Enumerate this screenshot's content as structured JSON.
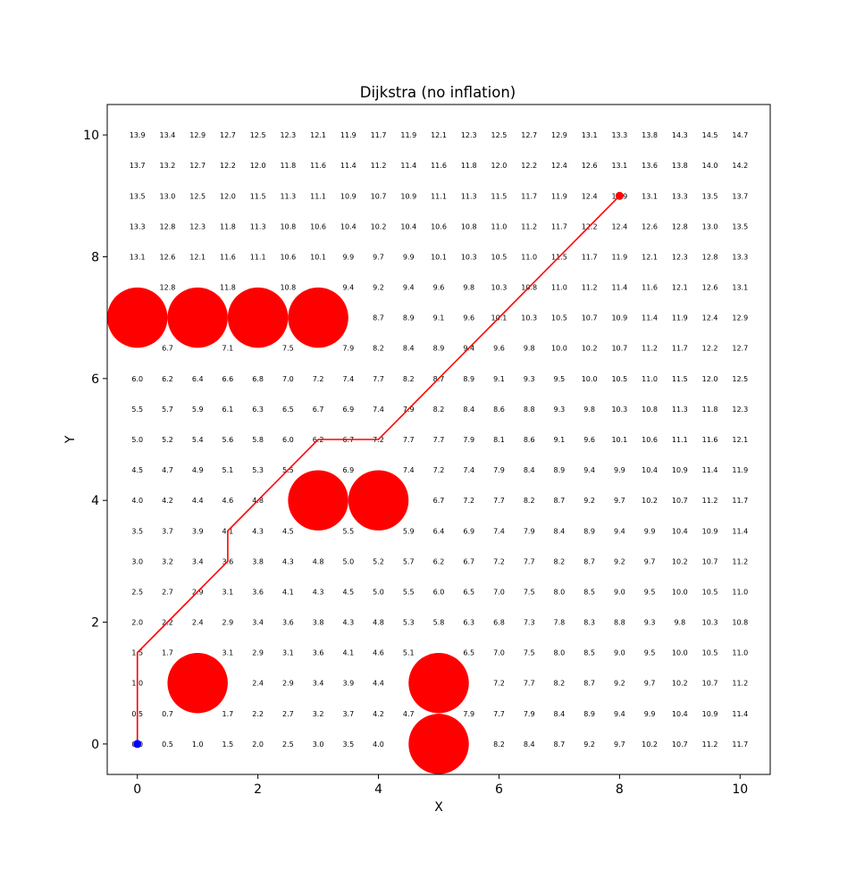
{
  "chart_data": {
    "type": "scatter",
    "title": "Dijkstra (no inflation)",
    "xlabel": "X",
    "ylabel": "Y",
    "xlim": [
      -0.5,
      10.5
    ],
    "ylim": [
      -0.5,
      10.5
    ],
    "xticks": [
      0,
      2,
      4,
      6,
      8,
      10
    ],
    "yticks": [
      0,
      2,
      4,
      6,
      8,
      10
    ],
    "grid": false,
    "grid_step": 0.5,
    "colors": {
      "obstacle": "#ff0000",
      "path": "#ff0000",
      "goal": "#ff0000",
      "start": "#0000ff",
      "text": "#000000"
    },
    "obstacles": {
      "radius": 0.5,
      "centers": [
        [
          0,
          7
        ],
        [
          1,
          7
        ],
        [
          2,
          7
        ],
        [
          3,
          7
        ],
        [
          3,
          4
        ],
        [
          4,
          4
        ],
        [
          1,
          1
        ],
        [
          5,
          1
        ],
        [
          5,
          0
        ]
      ]
    },
    "start": [
      0,
      0
    ],
    "goal": [
      8,
      9
    ],
    "path": [
      [
        0,
        0
      ],
      [
        0,
        1.5
      ],
      [
        1.5,
        3
      ],
      [
        1.5,
        3.5
      ],
      [
        3,
        5
      ],
      [
        4,
        5
      ],
      [
        8,
        9
      ]
    ],
    "cost_rows_top_to_bottom": [
      [
        "13.9",
        "13.4",
        "12.9",
        "12.7",
        "12.5",
        "12.3",
        "12.1",
        "11.9",
        "11.7",
        "11.9",
        "12.1",
        "12.3",
        "12.5",
        "12.7",
        "12.9",
        "13.1",
        "13.3",
        "13.8",
        "14.3",
        "14.5",
        "14.7"
      ],
      [
        "13.7",
        "13.2",
        "12.7",
        "12.2",
        "12.0",
        "11.8",
        "11.6",
        "11.4",
        "11.2",
        "11.4",
        "11.6",
        "11.8",
        "12.0",
        "12.2",
        "12.4",
        "12.6",
        "13.1",
        "13.6",
        "13.8",
        "14.0",
        "14.2"
      ],
      [
        "13.5",
        "13.0",
        "12.5",
        "12.0",
        "11.5",
        "11.3",
        "11.1",
        "10.9",
        "10.7",
        "10.9",
        "11.1",
        "11.3",
        "11.5",
        "11.7",
        "11.9",
        "12.4",
        "12.9",
        "13.1",
        "13.3",
        "13.5",
        "13.7"
      ],
      [
        "13.3",
        "12.8",
        "12.3",
        "11.8",
        "11.3",
        "10.8",
        "10.6",
        "10.4",
        "10.2",
        "10.4",
        "10.6",
        "10.8",
        "11.0",
        "11.2",
        "11.7",
        "12.2",
        "12.4",
        "12.6",
        "12.8",
        "13.0",
        "13.5"
      ],
      [
        "13.1",
        "12.6",
        "12.1",
        "11.6",
        "11.1",
        "10.6",
        "10.1",
        "9.9",
        "9.7",
        "9.9",
        "10.1",
        "10.3",
        "10.5",
        "11.0",
        "11.5",
        "11.7",
        "11.9",
        "12.1",
        "12.3",
        "12.8",
        "13.3"
      ],
      [
        "",
        "12.8",
        "",
        "11.8",
        "",
        "10.8",
        "",
        "9.4",
        "9.2",
        "9.4",
        "9.6",
        "9.8",
        "10.3",
        "10.8",
        "11.0",
        "11.2",
        "11.4",
        "11.6",
        "12.1",
        "12.6",
        "13.1"
      ],
      [
        "",
        "",
        "",
        "",
        "",
        "",
        "",
        "",
        "8.7",
        "8.9",
        "9.1",
        "9.6",
        "10.1",
        "10.3",
        "10.5",
        "10.7",
        "10.9",
        "11.4",
        "11.9",
        "12.4",
        "12.9"
      ],
      [
        "",
        "6.7",
        "",
        "7.1",
        "",
        "7.5",
        "",
        "7.9",
        "8.2",
        "8.4",
        "8.9",
        "9.4",
        "9.6",
        "9.8",
        "10.0",
        "10.2",
        "10.7",
        "11.2",
        "11.7",
        "12.2",
        "12.7"
      ],
      [
        "6.0",
        "6.2",
        "6.4",
        "6.6",
        "6.8",
        "7.0",
        "7.2",
        "7.4",
        "7.7",
        "8.2",
        "8.7",
        "8.9",
        "9.1",
        "9.3",
        "9.5",
        "10.0",
        "10.5",
        "11.0",
        "11.5",
        "12.0",
        "12.5"
      ],
      [
        "5.5",
        "5.7",
        "5.9",
        "6.1",
        "6.3",
        "6.5",
        "6.7",
        "6.9",
        "7.4",
        "7.9",
        "8.2",
        "8.4",
        "8.6",
        "8.8",
        "9.3",
        "9.8",
        "10.3",
        "10.8",
        "11.3",
        "11.8",
        "12.3"
      ],
      [
        "5.0",
        "5.2",
        "5.4",
        "5.6",
        "5.8",
        "6.0",
        "6.2",
        "6.7",
        "7.2",
        "7.7",
        "7.7",
        "7.9",
        "8.1",
        "8.6",
        "9.1",
        "9.6",
        "10.1",
        "10.6",
        "11.1",
        "11.6",
        "12.1"
      ],
      [
        "4.5",
        "4.7",
        "4.9",
        "5.1",
        "5.3",
        "5.5",
        "",
        "6.9",
        "",
        "7.4",
        "7.2",
        "7.4",
        "7.9",
        "8.4",
        "8.9",
        "9.4",
        "9.9",
        "10.4",
        "10.9",
        "11.4",
        "11.9"
      ],
      [
        "4.0",
        "4.2",
        "4.4",
        "4.6",
        "4.8",
        "",
        "",
        "",
        "",
        "",
        "6.7",
        "7.2",
        "7.7",
        "8.2",
        "8.7",
        "9.2",
        "9.7",
        "10.2",
        "10.7",
        "11.2",
        "11.7"
      ],
      [
        "3.5",
        "3.7",
        "3.9",
        "4.1",
        "4.3",
        "4.5",
        "",
        "5.5",
        "",
        "5.9",
        "6.4",
        "6.9",
        "7.4",
        "7.9",
        "8.4",
        "8.9",
        "9.4",
        "9.9",
        "10.4",
        "10.9",
        "11.4"
      ],
      [
        "3.0",
        "3.2",
        "3.4",
        "3.6",
        "3.8",
        "4.3",
        "4.8",
        "5.0",
        "5.2",
        "5.7",
        "6.2",
        "6.7",
        "7.2",
        "7.7",
        "8.2",
        "8.7",
        "9.2",
        "9.7",
        "10.2",
        "10.7",
        "11.2"
      ],
      [
        "2.5",
        "2.7",
        "2.9",
        "3.1",
        "3.6",
        "4.1",
        "4.3",
        "4.5",
        "5.0",
        "5.5",
        "6.0",
        "6.5",
        "7.0",
        "7.5",
        "8.0",
        "8.5",
        "9.0",
        "9.5",
        "10.0",
        "10.5",
        "11.0"
      ],
      [
        "2.0",
        "2.2",
        "2.4",
        "2.9",
        "3.4",
        "3.6",
        "3.8",
        "4.3",
        "4.8",
        "5.3",
        "5.8",
        "6.3",
        "6.8",
        "7.3",
        "7.8",
        "8.3",
        "8.8",
        "9.3",
        "9.8",
        "10.3",
        "10.8"
      ],
      [
        "1.5",
        "1.7",
        "",
        "3.1",
        "2.9",
        "3.1",
        "3.6",
        "4.1",
        "4.6",
        "5.1",
        "",
        "6.5",
        "7.0",
        "7.5",
        "8.0",
        "8.5",
        "9.0",
        "9.5",
        "10.0",
        "10.5",
        "11.0"
      ],
      [
        "1.0",
        "",
        "",
        "",
        "2.4",
        "2.9",
        "3.4",
        "3.9",
        "4.4",
        "",
        "",
        "",
        "7.2",
        "7.7",
        "8.2",
        "8.7",
        "9.2",
        "9.7",
        "10.2",
        "10.7",
        "11.2"
      ],
      [
        "0.5",
        "0.7",
        "",
        "1.7",
        "2.2",
        "2.7",
        "3.2",
        "3.7",
        "4.2",
        "4.7",
        "",
        "7.9",
        "7.7",
        "7.9",
        "8.4",
        "8.9",
        "9.4",
        "9.9",
        "10.4",
        "10.9",
        "11.4"
      ],
      [
        "0.0",
        "0.5",
        "1.0",
        "1.5",
        "2.0",
        "2.5",
        "3.0",
        "3.5",
        "4.0",
        "",
        "",
        "",
        "8.2",
        "8.4",
        "8.7",
        "9.2",
        "9.7",
        "10.2",
        "10.7",
        "11.2",
        "11.7"
      ]
    ]
  }
}
